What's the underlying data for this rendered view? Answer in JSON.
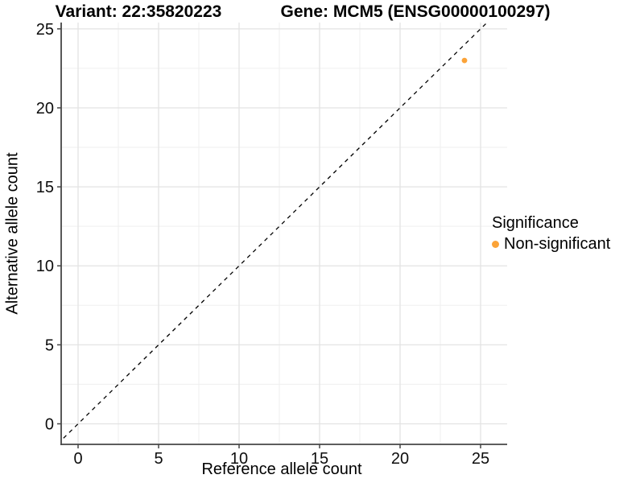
{
  "titles": {
    "left": "Variant: 22:35820223",
    "right": "Gene: MCM5 (ENSG00000100297)"
  },
  "chart_data": {
    "type": "scatter",
    "xlabel": "Reference allele count",
    "ylabel": "Alternative allele count",
    "xlim": [
      -1.05,
      26.65
    ],
    "ylim": [
      -1.3,
      25.4
    ],
    "xticks": [
      0,
      5,
      10,
      15,
      20,
      25
    ],
    "yticks": [
      0,
      5,
      10,
      15,
      20,
      25
    ],
    "minor_xticks": [
      2.5,
      7.5,
      12.5,
      17.5,
      22.5
    ],
    "minor_yticks": [
      2.5,
      7.5,
      12.5,
      17.5,
      22.5
    ],
    "grid": true,
    "series": [
      {
        "name": "Non-significant",
        "color": "#FBA338",
        "points": [
          {
            "x": 24,
            "y": 23
          }
        ]
      }
    ],
    "reference_line": {
      "slope": 1,
      "intercept": 0,
      "style": "dashed",
      "color": "#000000"
    },
    "legend": {
      "position": "right",
      "title": "Significance",
      "entries": [
        {
          "label": "Non-significant",
          "color": "#FBA338"
        }
      ]
    }
  },
  "style_colors": {
    "axis_line": "#464646",
    "tick_label": "#0d0d0d",
    "major_grid": "#e3e3e3",
    "minor_grid": "#efefef",
    "background": "#ffffff"
  }
}
